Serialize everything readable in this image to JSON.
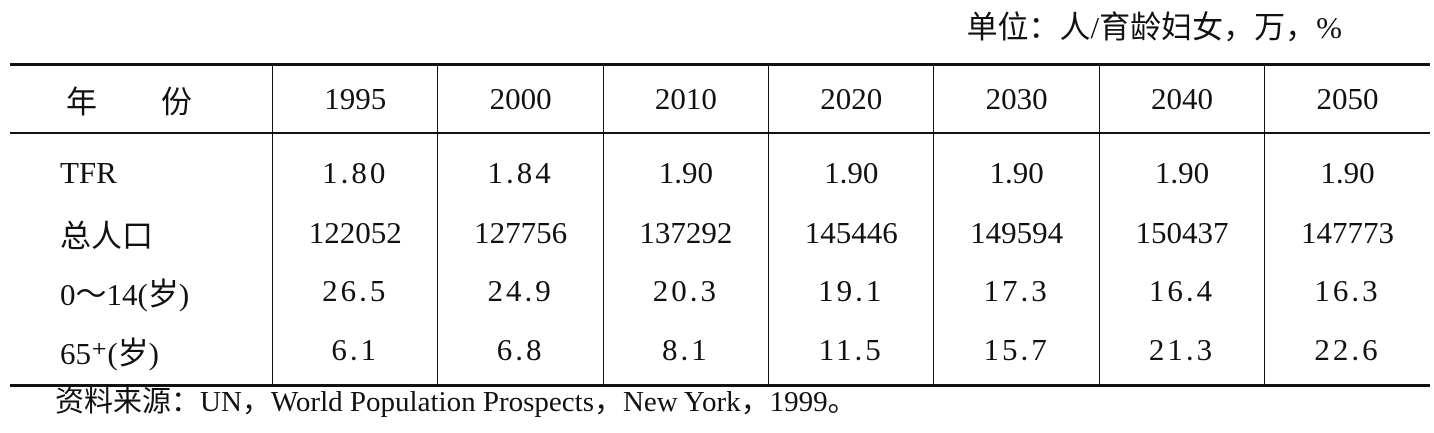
{
  "unit_text": "单位：人/育龄妇女，万，%",
  "table": {
    "header_label": "年份",
    "years": [
      "1995",
      "2000",
      "2010",
      "2020",
      "2030",
      "2040",
      "2050"
    ],
    "rows": [
      {
        "label": "TFR",
        "values": [
          "1.80",
          "1.84",
          "1.90",
          "1.90",
          "1.90",
          "1.90",
          "1.90"
        ]
      },
      {
        "label": "总人口",
        "values": [
          "122052",
          "127756",
          "137292",
          "145446",
          "149594",
          "150437",
          "147773"
        ]
      },
      {
        "label": "0～14(岁)",
        "values": [
          "26.5",
          "24.9",
          "20.3",
          "19.1",
          "17.3",
          "16.4",
          "16.3"
        ]
      },
      {
        "label": "65⁺(岁)",
        "values": [
          "6.1",
          "6.8",
          "8.1",
          "11.5",
          "15.7",
          "21.3",
          "22.6"
        ]
      }
    ]
  },
  "source_text": "资料来源：UN，World Population Prospects，New York，1999。"
}
